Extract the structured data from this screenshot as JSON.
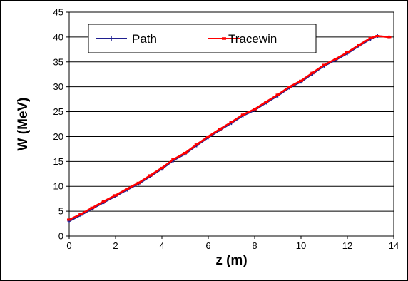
{
  "chart_data": {
    "type": "line",
    "xlabel": "z (m)",
    "ylabel": "W (MeV)",
    "xlim": [
      0,
      14
    ],
    "ylim": [
      0,
      45
    ],
    "x_ticks": [
      "0",
      "2",
      "4",
      "6",
      "8",
      "10",
      "12",
      "14"
    ],
    "y_ticks": [
      "0",
      "5",
      "10",
      "15",
      "20",
      "25",
      "30",
      "35",
      "40",
      "45"
    ],
    "grid": "horizontal",
    "legend": "top",
    "series": [
      {
        "name": "Path",
        "color": "#1f1f8f",
        "marker": "plus",
        "x": [
          0.0,
          0.5,
          1.0,
          1.5,
          2.0,
          2.5,
          3.0,
          3.5,
          4.0,
          4.5,
          5.0,
          5.5,
          6.0,
          6.5,
          7.0,
          7.5,
          8.0,
          8.5,
          9.0,
          9.5,
          10.0,
          10.5,
          11.0,
          11.5,
          12.0,
          12.5,
          13.0,
          13.3,
          13.8
        ],
        "y": [
          3.0,
          4.2,
          5.5,
          6.8,
          8.0,
          9.3,
          10.5,
          12.0,
          13.5,
          15.2,
          16.5,
          18.2,
          19.8,
          21.3,
          22.7,
          24.2,
          25.3,
          26.8,
          28.2,
          29.8,
          31.0,
          32.6,
          34.2,
          35.4,
          36.7,
          38.2,
          39.6,
          40.2,
          40.0
        ]
      },
      {
        "name": "Tracewin",
        "color": "#ff0000",
        "marker": "dash",
        "x": [
          0.0,
          0.5,
          1.0,
          1.5,
          2.0,
          2.5,
          3.0,
          3.5,
          4.0,
          4.5,
          5.0,
          5.5,
          6.0,
          6.5,
          7.0,
          7.5,
          8.0,
          8.5,
          9.0,
          9.5,
          10.0,
          10.5,
          11.0,
          11.5,
          12.0,
          12.5,
          13.0,
          13.3,
          13.8
        ],
        "y": [
          3.3,
          4.4,
          5.7,
          7.0,
          8.2,
          9.5,
          10.7,
          12.2,
          13.7,
          15.4,
          16.7,
          18.4,
          20.0,
          21.5,
          22.9,
          24.4,
          25.5,
          27.0,
          28.4,
          30.0,
          31.2,
          32.8,
          34.4,
          35.6,
          36.9,
          38.4,
          39.8,
          40.2,
          40.0
        ]
      }
    ]
  }
}
